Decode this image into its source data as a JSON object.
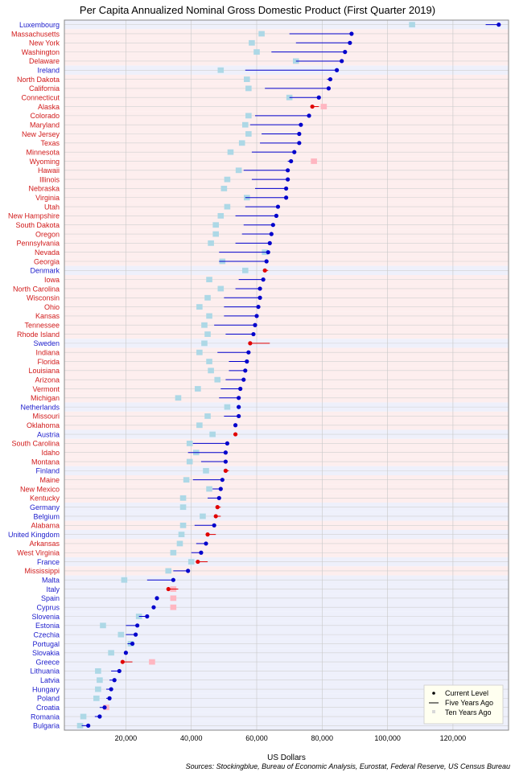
{
  "chart_data": {
    "type": "dot-range",
    "title": "Per Capita Annualized Nominal Gross Domestic Product (First Quarter 2019)",
    "xlabel": "US Dollars",
    "source": "Sources: Stockingblue, Bureau of Economic Analysis, Eurostat, Federal Reserve, US Census Bureau",
    "x_ticks": [
      20000,
      40000,
      60000,
      80000,
      100000,
      120000
    ],
    "x_tick_labels": [
      "20,000",
      "40,000",
      "60,000",
      "80,000",
      "100,000",
      "120,000"
    ],
    "xlim": [
      1200,
      137000
    ],
    "grid": true,
    "legend": {
      "placement": "bottom-right",
      "entries": [
        "Current Level",
        "Five Years Ago",
        "Ten Years Ago"
      ]
    },
    "colors": {
      "eu_label": "#1c1ccc",
      "us_label": "#d11a1a",
      "eu_band": "#eef0fb",
      "us_band": "#fdeeee",
      "increase": "#0000cc",
      "decrease": "#e00000",
      "ten_up": "#add8e6",
      "ten_down": "#ffb6c1"
    },
    "categories": [
      "Luxembourg",
      "Massachusetts",
      "New York",
      "Washington",
      "Delaware",
      "Ireland",
      "North Dakota",
      "California",
      "Connecticut",
      "Alaska",
      "Colorado",
      "Maryland",
      "New Jersey",
      "Texas",
      "Minnesota",
      "Wyoming",
      "Hawaii",
      "Illinois",
      "Nebraska",
      "Virginia",
      "Utah",
      "New Hampshire",
      "South Dakota",
      "Oregon",
      "Pennsylvania",
      "Nevada",
      "Georgia",
      "Denmark",
      "Iowa",
      "North Carolina",
      "Wisconsin",
      "Ohio",
      "Kansas",
      "Tennessee",
      "Rhode Island",
      "Sweden",
      "Indiana",
      "Florida",
      "Louisiana",
      "Arizona",
      "Vermont",
      "Michigan",
      "Netherlands",
      "Missouri",
      "Oklahoma",
      "Austria",
      "South Carolina",
      "Idaho",
      "Montana",
      "Finland",
      "Maine",
      "New Mexico",
      "Kentucky",
      "Germany",
      "Belgium",
      "Alabama",
      "United Kingdom",
      "Arkansas",
      "West Virginia",
      "France",
      "Mississippi",
      "Malta",
      "Italy",
      "Spain",
      "Cyprus",
      "Slovenia",
      "Estonia",
      "Czechia",
      "Portugal",
      "Slovakia",
      "Greece",
      "Lithuania",
      "Latvia",
      "Hungary",
      "Poland",
      "Croatia",
      "Romania",
      "Bulgaria"
    ],
    "region": [
      "eu",
      "us",
      "us",
      "us",
      "us",
      "eu",
      "us",
      "us",
      "us",
      "us",
      "us",
      "us",
      "us",
      "us",
      "us",
      "us",
      "us",
      "us",
      "us",
      "us",
      "us",
      "us",
      "us",
      "us",
      "us",
      "us",
      "us",
      "eu",
      "us",
      "us",
      "us",
      "us",
      "us",
      "us",
      "us",
      "eu",
      "us",
      "us",
      "us",
      "us",
      "us",
      "us",
      "eu",
      "us",
      "us",
      "eu",
      "us",
      "us",
      "us",
      "eu",
      "us",
      "us",
      "us",
      "eu",
      "eu",
      "us",
      "eu",
      "us",
      "us",
      "eu",
      "us",
      "eu",
      "eu",
      "eu",
      "eu",
      "eu",
      "eu",
      "eu",
      "eu",
      "eu",
      "eu",
      "eu",
      "eu",
      "eu",
      "eu",
      "eu",
      "eu",
      "eu"
    ],
    "series": [
      {
        "name": "Current Level",
        "values": [
          134000,
          89000,
          88500,
          87000,
          86000,
          84500,
          82500,
          82000,
          79000,
          77000,
          76000,
          73500,
          73000,
          73000,
          71500,
          70500,
          69500,
          69500,
          69000,
          69000,
          66500,
          66000,
          65000,
          64500,
          64000,
          63500,
          63000,
          62500,
          62000,
          61000,
          61000,
          60500,
          60000,
          59500,
          59000,
          58000,
          57500,
          57000,
          56500,
          56000,
          55000,
          54500,
          54500,
          54500,
          53500,
          53500,
          51000,
          50500,
          50500,
          50500,
          49500,
          49000,
          48500,
          48000,
          47500,
          47000,
          45000,
          44500,
          43000,
          42000,
          39000,
          34500,
          33000,
          29500,
          28500,
          26500,
          23500,
          23000,
          22000,
          20000,
          19000,
          18000,
          16500,
          15500,
          15000,
          13500,
          12000,
          8500
        ]
      },
      {
        "name": "Five Years Ago",
        "values": [
          130000,
          70000,
          72000,
          64500,
          72000,
          56500,
          81500,
          62500,
          70000,
          79000,
          59500,
          58000,
          61500,
          61000,
          58500,
          69500,
          56000,
          58500,
          59500,
          56500,
          56500,
          53500,
          56000,
          55500,
          53500,
          48500,
          48500,
          63500,
          54500,
          53500,
          50000,
          50000,
          50000,
          47000,
          50500,
          64000,
          48000,
          51500,
          51500,
          50500,
          49000,
          48500,
          54000,
          50000,
          53500,
          54000,
          40500,
          39000,
          43000,
          51500,
          40500,
          46500,
          45000,
          49000,
          49000,
          41000,
          47500,
          41500,
          40000,
          45000,
          34500,
          26500,
          36000,
          29500,
          28500,
          24000,
          20000,
          20000,
          20500,
          19500,
          22000,
          15500,
          15000,
          14000,
          14000,
          12000,
          10500,
          6500
        ]
      },
      {
        "name": "Ten Years Ago",
        "values": [
          107500,
          61500,
          58500,
          60000,
          72000,
          49000,
          57000,
          57500,
          70000,
          80500,
          57500,
          56500,
          57500,
          55500,
          52000,
          77500,
          54500,
          51000,
          50000,
          57000,
          51000,
          49000,
          47500,
          47500,
          46000,
          62500,
          49500,
          56500,
          45500,
          49000,
          45000,
          42500,
          45500,
          44000,
          45000,
          44000,
          42500,
          45500,
          46000,
          48000,
          42000,
          36000,
          51000,
          45000,
          42500,
          46500,
          39500,
          41500,
          39500,
          44500,
          38500,
          45500,
          37500,
          37500,
          43500,
          37500,
          37000,
          36500,
          34500,
          40000,
          33000,
          19500,
          34500,
          34500,
          34500,
          24000,
          13000,
          18500,
          21500,
          15500,
          28000,
          11500,
          12000,
          11500,
          11000,
          14000,
          7000,
          6000
        ]
      }
    ]
  }
}
